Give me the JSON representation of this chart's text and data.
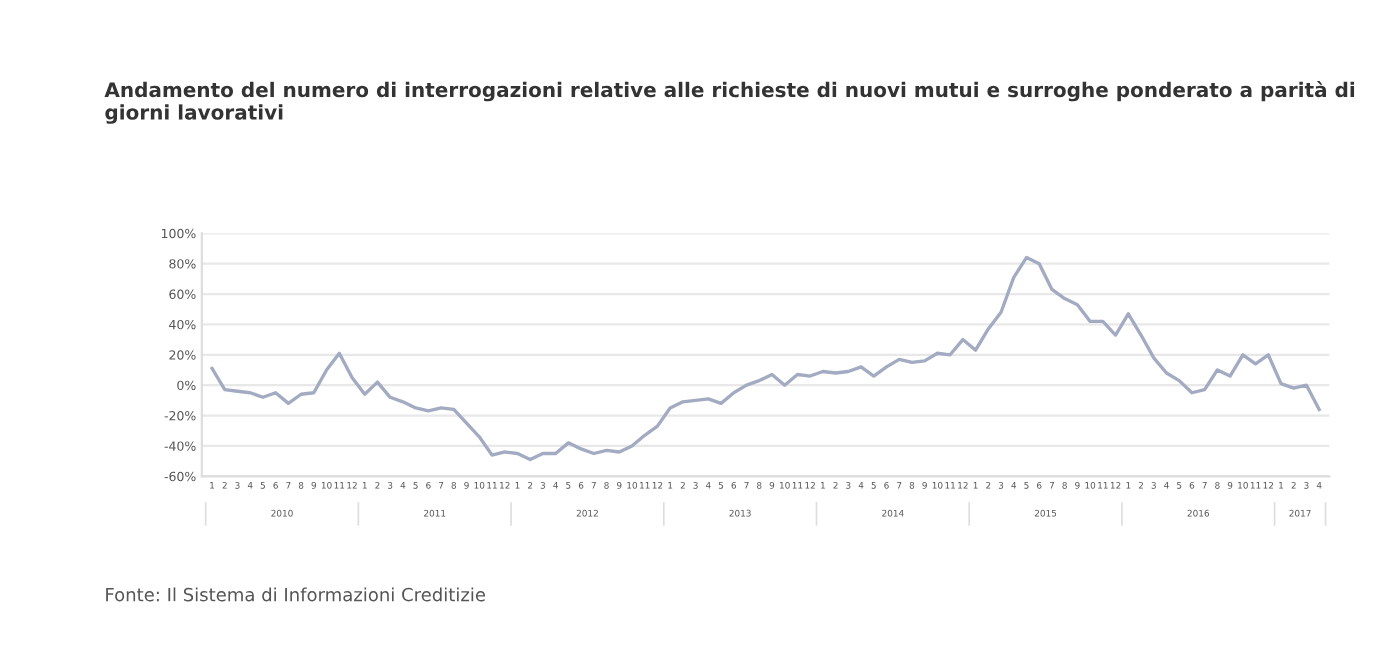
{
  "chart_data": {
    "type": "line",
    "title": "Andamento del numero di interrogazioni relative alle richieste di nuovi mutui e surroghe ponderato a parità di giorni lavorativi",
    "categories": [
      "1",
      "2",
      "3",
      "4",
      "5",
      "6",
      "7",
      "8",
      "9",
      "10",
      "11",
      "12",
      "1",
      "2",
      "3",
      "4",
      "5",
      "6",
      "7",
      "8",
      "9",
      "10",
      "11",
      "12",
      "1",
      "2",
      "3",
      "4",
      "5",
      "6",
      "7",
      "8",
      "9",
      "10",
      "11",
      "12",
      "1",
      "2",
      "3",
      "4",
      "5",
      "6",
      "7",
      "8",
      "9",
      "10",
      "11",
      "12",
      "1",
      "2",
      "3",
      "4",
      "5",
      "6",
      "7",
      "8",
      "9",
      "10",
      "11",
      "12",
      "1",
      "2",
      "3",
      "4",
      "5",
      "6",
      "7",
      "8",
      "9",
      "10",
      "11",
      "12",
      "1",
      "2",
      "3",
      "4",
      "5",
      "6",
      "7",
      "8",
      "9",
      "10",
      "11",
      "12",
      "1",
      "2",
      "3",
      "4"
    ],
    "series": [
      {
        "color": "#a3abc2",
        "values": [
          11,
          -3,
          -4,
          -5,
          -8,
          -5,
          -12,
          -6,
          -5,
          10,
          21,
          5,
          -6,
          2,
          -8,
          -11,
          -15,
          -17,
          -15,
          -16,
          -25,
          -34,
          -46,
          -44,
          -45,
          -49,
          -45,
          -45,
          -38,
          -42,
          -45,
          -43,
          -44,
          -40,
          -33,
          -27,
          -15,
          -11,
          -10,
          -9,
          -12,
          -5,
          0,
          3,
          7,
          0,
          7,
          6,
          9,
          8,
          9,
          12,
          6,
          12,
          17,
          15,
          16,
          21,
          20,
          30,
          23,
          37,
          48,
          71,
          84,
          80,
          63,
          57,
          53,
          42,
          42,
          33,
          47,
          33,
          18,
          8,
          3,
          -5,
          -3,
          10,
          6,
          20,
          14,
          20,
          1,
          -2,
          0,
          -16
        ]
      }
    ],
    "ylim": [
      -60,
      100
    ],
    "yticks": [
      {
        "value": -60,
        "label": "-60%"
      },
      {
        "value": -40,
        "label": "-40%"
      },
      {
        "value": -20,
        "label": "-20%"
      },
      {
        "value": 0,
        "label": "0%"
      },
      {
        "value": 20,
        "label": "20%"
      },
      {
        "value": 40,
        "label": "40%"
      },
      {
        "value": 60,
        "label": "60%"
      },
      {
        "value": 80,
        "label": "80%"
      },
      {
        "value": 100,
        "label": "100%"
      }
    ],
    "grid": "y",
    "marker": "none",
    "line_style": "solid",
    "legend": false,
    "annotations": [
      "2010",
      "2011",
      "2012",
      "2013",
      "2014",
      "2015",
      "2016",
      "2017",
      "Fonte: Il Sistema di Informazioni Creditizie"
    ]
  }
}
